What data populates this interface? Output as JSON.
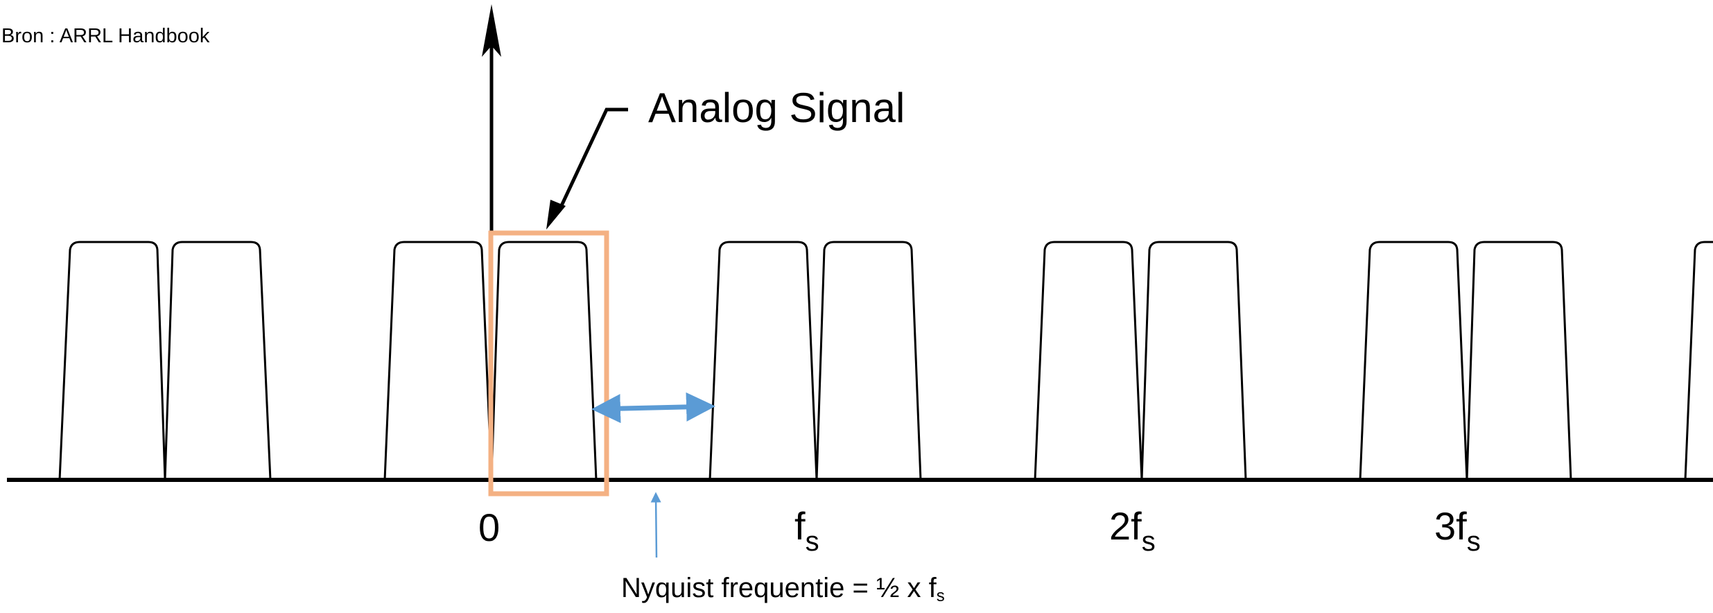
{
  "source_note": "Bron : ARRL Handbook",
  "annotation": "Analog Signal",
  "axis_labels": {
    "zero": "0",
    "fs": "f",
    "two_fs": "2f",
    "three_fs": "3f",
    "subscript": "s"
  },
  "nyquist": {
    "text": "Nyquist frequentie = ½ x f",
    "subscript": "s"
  },
  "colors": {
    "line": "#000000",
    "highlight_box": "#f4b183",
    "nyquist_arrow": "#5b9bd5"
  }
}
